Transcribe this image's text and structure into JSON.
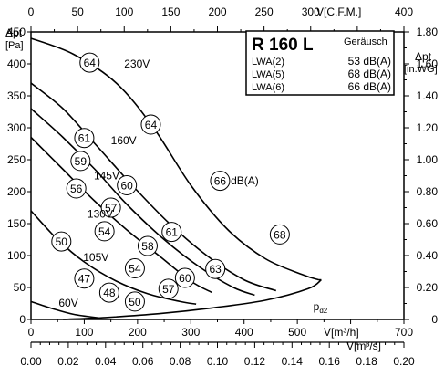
{
  "chart_data": {
    "type": "line",
    "model": "R 160 L",
    "noise_header": "Geräusch",
    "noise_levels": [
      {
        "label": "LWA(2)",
        "value": "53 dB(A)"
      },
      {
        "label": "LWA(5)",
        "value": "68 dB(A)"
      },
      {
        "label": "LWA(6)",
        "value": "66 dB(A)"
      }
    ],
    "axes": {
      "x_bottom": {
        "label": "V[m³/h]",
        "range": [
          0,
          700
        ],
        "ticks": [
          "0",
          "100",
          "200",
          "300",
          "400",
          "500",
          "700"
        ]
      },
      "x_bottom2": {
        "label": "V[m³/s]",
        "range": [
          0,
          0.2
        ],
        "ticks": [
          "0.00",
          "0.02",
          "0.04",
          "0.06",
          "0.08",
          "0.10",
          "0.12",
          "0.14",
          "0.16",
          "0.18",
          "0.20"
        ]
      },
      "x_top": {
        "label": "V[C.F.M.]",
        "range": [
          0,
          400
        ],
        "ticks": [
          "0",
          "50",
          "100",
          "150",
          "200",
          "250",
          "300",
          "400"
        ]
      },
      "y_left": {
        "label_main": "Δpt",
        "label_unit": "[Pa]",
        "range": [
          0,
          450
        ],
        "ticks": [
          "0",
          "50",
          "100",
          "150",
          "200",
          "250",
          "300",
          "350",
          "400",
          "450"
        ]
      },
      "y_right": {
        "label_main": "Δpt",
        "label_unit": "[in.WG]",
        "range": [
          0,
          1.8
        ],
        "ticks": [
          "0",
          "0.20",
          "0.40",
          "0.60",
          "0.80",
          "1.00",
          "1.20",
          "1.40",
          "1.60",
          "1.80"
        ]
      }
    },
    "series": [
      {
        "name": "230V",
        "x": [
          0,
          80,
          160,
          230,
          300,
          370,
          440,
          510,
          540
        ],
        "y": [
          440,
          415,
          370,
          300,
          210,
          140,
          95,
          70,
          62
        ]
      },
      {
        "name": "160V",
        "x": [
          0,
          60,
          120,
          190,
          260,
          330,
          400,
          460
        ],
        "y": [
          370,
          330,
          275,
          210,
          150,
          100,
          62,
          45
        ]
      },
      {
        "name": "145V",
        "x": [
          0,
          60,
          120,
          180,
          250,
          320,
          380,
          420
        ],
        "y": [
          330,
          285,
          235,
          180,
          125,
          80,
          50,
          38
        ]
      },
      {
        "name": "130V",
        "x": [
          0,
          60,
          120,
          180,
          240,
          300,
          340
        ],
        "y": [
          285,
          235,
          185,
          140,
          100,
          60,
          42
        ]
      },
      {
        "name": "105V",
        "x": [
          0,
          50,
          100,
          160,
          220,
          280,
          310
        ],
        "y": [
          170,
          125,
          90,
          60,
          40,
          28,
          24
        ]
      },
      {
        "name": "60V",
        "x": [
          0,
          40,
          80,
          130
        ],
        "y": [
          28,
          17,
          8,
          2
        ]
      }
    ],
    "system_curve": {
      "name": "pd2",
      "x": [
        60,
        140,
        240,
        340,
        440,
        520,
        545
      ],
      "y": [
        0,
        3,
        9,
        18,
        30,
        48,
        62
      ]
    },
    "noise_markers": [
      {
        "label": "64",
        "x": 110,
        "y": 402
      },
      {
        "label": "64",
        "x": 225,
        "y": 305
      },
      {
        "label": "66",
        "x": 355,
        "y": 217
      },
      {
        "label": "68",
        "x": 467,
        "y": 133
      },
      {
        "label": "61",
        "x": 100,
        "y": 284
      },
      {
        "label": "60",
        "x": 180,
        "y": 210
      },
      {
        "label": "61",
        "x": 264,
        "y": 137
      },
      {
        "label": "63",
        "x": 346,
        "y": 79
      },
      {
        "label": "59",
        "x": 93,
        "y": 248
      },
      {
        "label": "57",
        "x": 150,
        "y": 175
      },
      {
        "label": "58",
        "x": 219,
        "y": 115
      },
      {
        "label": "60",
        "x": 289,
        "y": 65
      },
      {
        "label": "56",
        "x": 85,
        "y": 205
      },
      {
        "label": "54",
        "x": 138,
        "y": 138
      },
      {
        "label": "54",
        "x": 195,
        "y": 80
      },
      {
        "label": "57",
        "x": 258,
        "y": 48
      },
      {
        "label": "50",
        "x": 57,
        "y": 122
      },
      {
        "label": "47",
        "x": 100,
        "y": 64
      },
      {
        "label": "48",
        "x": 147,
        "y": 42
      },
      {
        "label": "50",
        "x": 195,
        "y": 28
      }
    ],
    "voltage_labels": [
      {
        "text": "230V",
        "x": 175,
        "y": 400
      },
      {
        "text": "160V",
        "x": 150,
        "y": 280
      },
      {
        "text": "145V",
        "x": 118,
        "y": 225
      },
      {
        "text": "130V",
        "x": 106,
        "y": 165
      },
      {
        "text": "105V",
        "x": 98,
        "y": 97
      },
      {
        "text": "60V",
        "x": 52,
        "y": 26
      },
      {
        "text": "dB(A)",
        "x": 375,
        "y": 217
      },
      {
        "text": "pd2",
        "x": 530,
        "y": 20
      }
    ]
  }
}
